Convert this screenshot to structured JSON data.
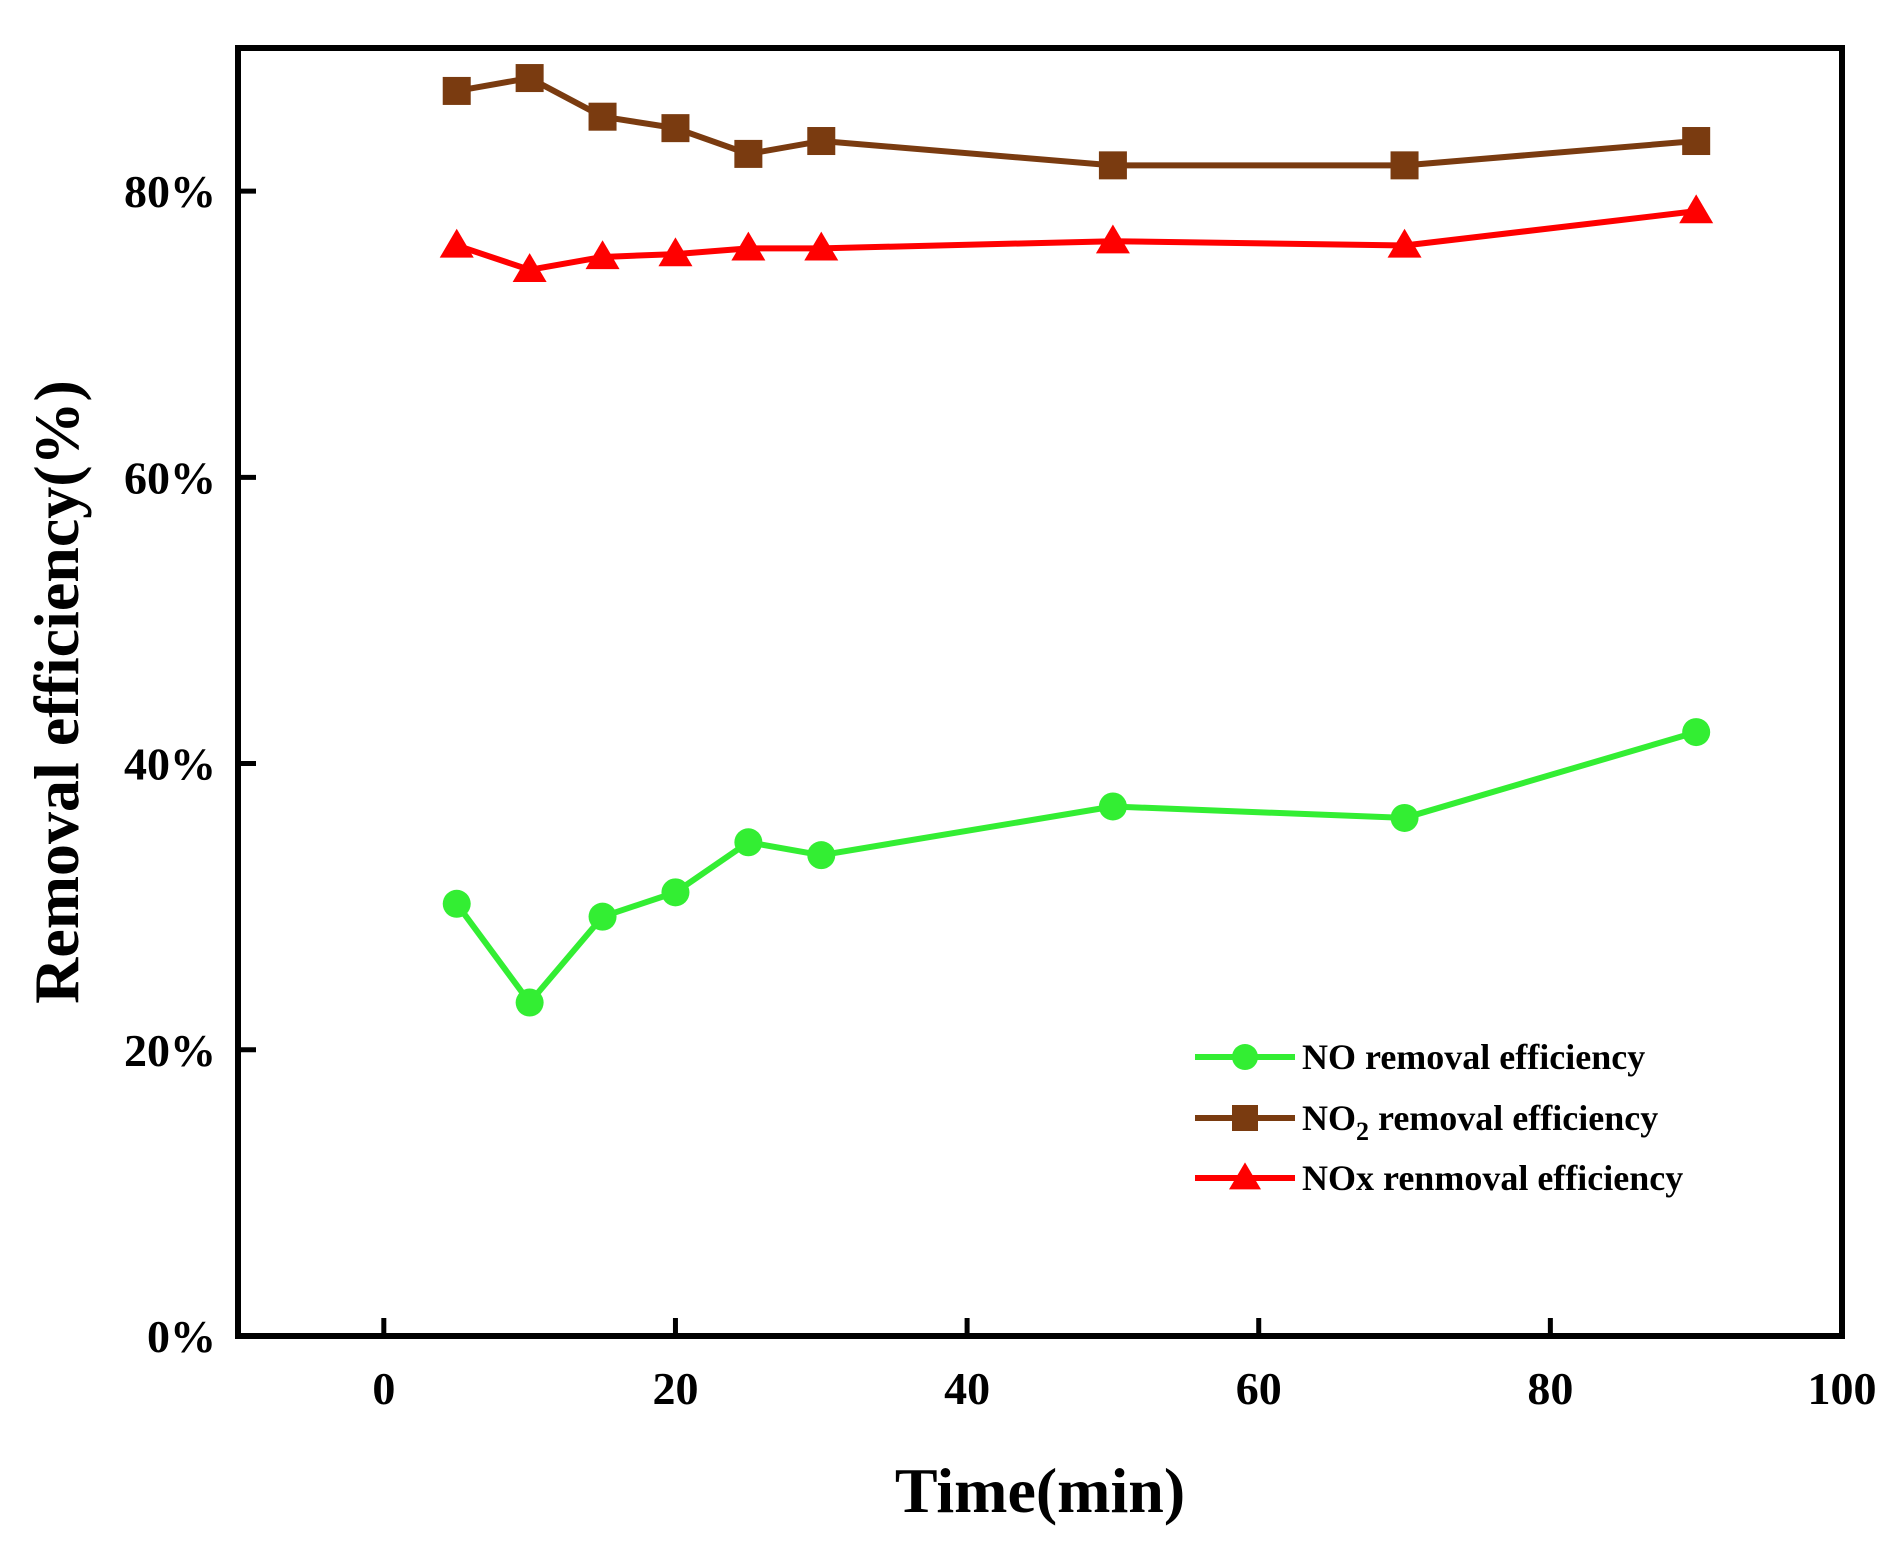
{
  "chart_data": {
    "type": "line",
    "title": "",
    "xlabel": "Time(min)",
    "ylabel": "Removal efficiency(%)",
    "xlim": [
      -10,
      100
    ],
    "ylim": [
      0,
      90
    ],
    "x_ticks": [
      0,
      20,
      40,
      60,
      80,
      100
    ],
    "y_ticks": [
      0,
      20,
      40,
      60,
      80
    ],
    "y_tick_labels": [
      "0%",
      "20%",
      "40%",
      "60%",
      "80%"
    ],
    "grid": false,
    "legend_position": "bottom-right",
    "x": [
      5,
      10,
      15,
      20,
      25,
      30,
      50,
      70,
      90
    ],
    "series": [
      {
        "name": "NO removal efficiency",
        "legend_main": "NO removal efficiency",
        "legend_sub": "",
        "legend_rest": "",
        "marker": "circle",
        "color": "#33ee33",
        "values": [
          30.2,
          23.3,
          29.3,
          31.0,
          34.5,
          33.6,
          37.0,
          36.2,
          42.2
        ]
      },
      {
        "name": "NO2 removal efficiency",
        "legend_main": "NO",
        "legend_sub": "2",
        "legend_rest": " removal efficiency",
        "marker": "square",
        "color": "#7a3b10",
        "values": [
          87.0,
          87.9,
          85.2,
          84.4,
          82.6,
          83.5,
          81.8,
          81.8,
          83.5
        ]
      },
      {
        "name": "NOx renmoval efficiency",
        "legend_main": "NOx renmoval efficiency",
        "legend_sub": "",
        "legend_rest": "",
        "marker": "triangle",
        "color": "#ff0000",
        "values": [
          76.2,
          74.5,
          75.4,
          75.6,
          76.0,
          76.0,
          76.5,
          76.2,
          78.6
        ]
      }
    ]
  }
}
